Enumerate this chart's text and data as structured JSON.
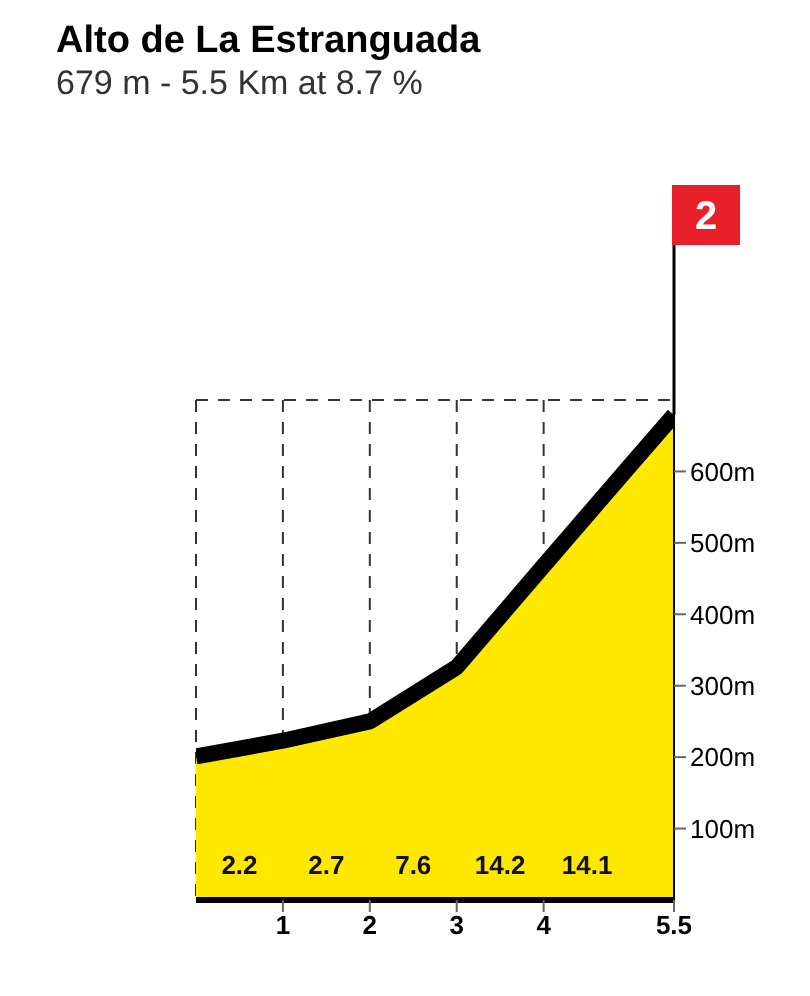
{
  "chart_data": {
    "type": "area",
    "title": "Alto de La Estranguada",
    "subtitle": "679 m - 5.5 Km at 8.7 %",
    "x": [
      0,
      1,
      2,
      3,
      4,
      5,
      5.5
    ],
    "series": [
      {
        "color": "#ffe800",
        "values": [
          201,
          223,
          250,
          326,
          468,
          609,
          679
        ]
      }
    ],
    "xlim": [
      0,
      5.5
    ],
    "xticks": [
      1,
      2,
      3,
      4,
      5.5
    ],
    "ylim": [
      0,
      700
    ],
    "yticks": [
      {
        "value": 100,
        "label": "100m"
      },
      {
        "value": 200,
        "label": "200m"
      },
      {
        "value": 300,
        "label": "300m"
      },
      {
        "value": 400,
        "label": "400m"
      },
      {
        "value": 500,
        "label": "500m"
      },
      {
        "value": 600,
        "label": "600m"
      }
    ],
    "grid": true,
    "annotations": [
      {
        "text": "2",
        "x": 5.5,
        "y": 679
      },
      "2.2",
      "2.7",
      "7.6",
      "14.2",
      "14.1"
    ]
  }
}
